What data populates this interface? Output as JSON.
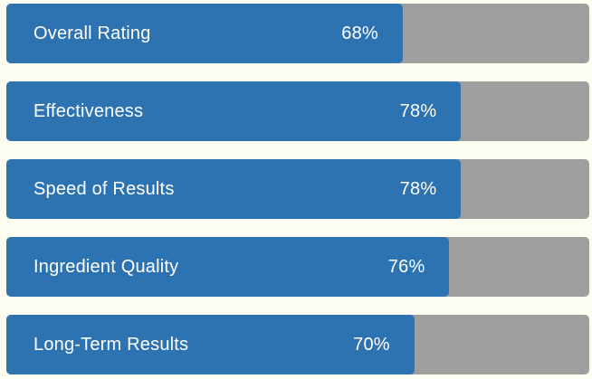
{
  "chart_data": {
    "type": "bar",
    "orientation": "horizontal",
    "title": "",
    "xlabel": "",
    "ylabel": "",
    "xlim": [
      0,
      100
    ],
    "grid": false,
    "legend": false,
    "categories": [
      "Overall Rating",
      "Effectiveness",
      "Speed of Results",
      "Ingredient Quality",
      "Long-Term Results"
    ],
    "values": [
      68,
      78,
      78,
      76,
      70
    ],
    "value_labels": [
      "68%",
      "78%",
      "78%",
      "76%",
      "70%"
    ],
    "bar_color": "#2e73b1",
    "track_color": "#9e9e9e",
    "background_color": "#fdfdf2",
    "label_text_color": "#ffffff"
  },
  "bars": [
    {
      "label": "Overall Rating",
      "value": 68,
      "display_value": "68%"
    },
    {
      "label": "Effectiveness",
      "value": 78,
      "display_value": "78%"
    },
    {
      "label": "Speed of Results",
      "value": 78,
      "display_value": "78%"
    },
    {
      "label": "Ingredient Quality",
      "value": 76,
      "display_value": "76%"
    },
    {
      "label": "Long-Term Results",
      "value": 70,
      "display_value": "70%"
    }
  ]
}
